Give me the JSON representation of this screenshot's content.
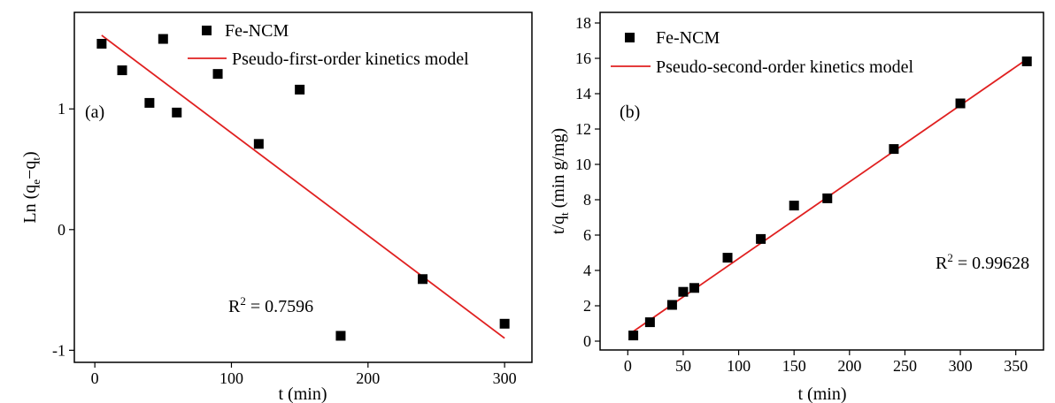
{
  "chart_data": [
    {
      "type": "scatter",
      "panel_label": "(a)",
      "xlabel": "t (min)",
      "ylabel_main": "Ln (q",
      "ylabel_sub1": "e",
      "ylabel_mid": "−q",
      "ylabel_sub2": "t",
      "ylabel_end": ")",
      "xlim": [
        -15,
        320
      ],
      "ylim": [
        -1.1,
        1.8
      ],
      "xticks": [
        0,
        100,
        200,
        300
      ],
      "yticks": [
        -1,
        0,
        1
      ],
      "xtick_labels": [
        "0",
        "100",
        "200",
        "300"
      ],
      "ytick_labels": [
        "-1",
        "0",
        "1"
      ],
      "series": [
        {
          "name": "Fe-NCM",
          "kind": "points",
          "color": "#000000",
          "x": [
            5,
            20,
            40,
            50,
            60,
            90,
            120,
            150,
            180,
            240,
            300
          ],
          "y": [
            1.54,
            1.32,
            1.05,
            1.58,
            0.97,
            1.29,
            0.71,
            1.16,
            -0.88,
            -0.41,
            -0.78
          ]
        },
        {
          "name": "Pseudo-first-order kinetics model",
          "kind": "line",
          "color": "#e02020",
          "x": [
            5,
            300
          ],
          "y": [
            1.61,
            -0.9
          ]
        }
      ],
      "annotation_base": "R",
      "annotation_sup": "2",
      "annotation_value": " = 0.7596",
      "legend_position": "top-right"
    },
    {
      "type": "scatter",
      "panel_label": "(b)",
      "xlabel": "t (min)",
      "ylabel_main": "t/q",
      "ylabel_sub": "t",
      "ylabel_end": " (min g/mg)",
      "xlim": [
        -25,
        375
      ],
      "ylim": [
        -0.5,
        18.6
      ],
      "xticks": [
        0,
        50,
        100,
        150,
        200,
        250,
        300,
        350
      ],
      "yticks": [
        0,
        2,
        4,
        6,
        8,
        10,
        12,
        14,
        16,
        18
      ],
      "xtick_labels": [
        "0",
        "50",
        "100",
        "150",
        "200",
        "250",
        "300",
        "350"
      ],
      "ytick_labels": [
        "0",
        "2",
        "4",
        "6",
        "8",
        "10",
        "12",
        "14",
        "16",
        "18"
      ],
      "series": [
        {
          "name": "Fe-NCM",
          "kind": "points",
          "color": "#000000",
          "x": [
            5,
            20,
            40,
            50,
            60,
            90,
            120,
            150,
            180,
            240,
            300,
            360
          ],
          "y": [
            0.32,
            1.07,
            2.05,
            2.79,
            3.01,
            4.72,
            5.78,
            7.67,
            8.08,
            10.87,
            13.45,
            15.83
          ]
        },
        {
          "name": "Pseudo-second-order kinetics model",
          "kind": "line",
          "color": "#e02020",
          "x": [
            5,
            360
          ],
          "y": [
            0.55,
            15.95
          ]
        }
      ],
      "annotation_base": "R",
      "annotation_sup": "2",
      "annotation_value": " = 0.99628",
      "legend_position": "top-left"
    }
  ]
}
